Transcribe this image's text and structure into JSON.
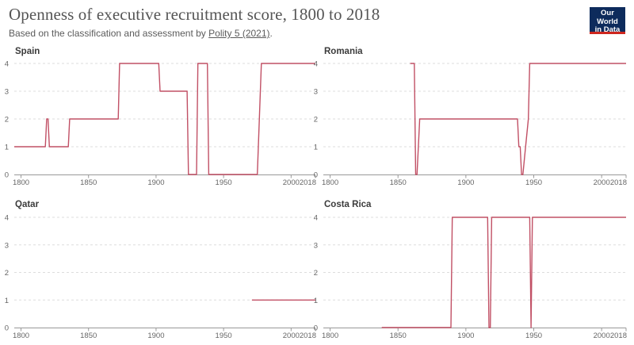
{
  "header": {
    "title": "Openness of executive recruitment score, 1800 to 2018",
    "subtitle_prefix": "Based on the classification and assessment by ",
    "subtitle_link": "Polity 5 (2021)",
    "subtitle_suffix": ".",
    "logo_line1": "Our World",
    "logo_line2": "in Data",
    "logo_bg": "#0d2b5c",
    "logo_accent": "#ce261e"
  },
  "chart_data": [
    {
      "type": "line",
      "title": "Spain",
      "color": "#c15065",
      "xlim": [
        1795,
        2018
      ],
      "ylim": [
        0,
        4
      ],
      "xticks": [
        1800,
        1850,
        1900,
        1950,
        2000,
        2018
      ],
      "yticks": [
        0,
        1,
        2,
        3,
        4
      ],
      "x": [
        1795,
        1818,
        1819,
        1820,
        1821,
        1835,
        1836,
        1872,
        1873,
        1902,
        1903,
        1923,
        1924,
        1926,
        1930,
        1931,
        1934,
        1938,
        1939,
        1975,
        1978,
        2018
      ],
      "y": [
        1,
        1,
        2,
        2,
        1,
        1,
        2,
        2,
        4,
        4,
        3,
        3,
        0,
        0,
        0,
        4,
        4,
        4,
        0,
        0,
        4,
        4
      ]
    },
    {
      "type": "line",
      "title": "Romania",
      "color": "#c15065",
      "xlim": [
        1795,
        2018
      ],
      "ylim": [
        0,
        4
      ],
      "xticks": [
        1800,
        1850,
        1900,
        1950,
        2000,
        2018
      ],
      "yticks": [
        0,
        1,
        2,
        3,
        4
      ],
      "x": [
        1859,
        1861,
        1862,
        1863,
        1864,
        1866,
        1938,
        1939,
        1940,
        1941,
        1942,
        1944,
        1946,
        1947,
        2018
      ],
      "y": [
        4,
        4,
        4,
        0,
        0,
        2,
        2,
        1,
        1,
        0,
        0,
        1,
        2,
        4,
        4
      ]
    },
    {
      "type": "line",
      "title": "Qatar",
      "color": "#c15065",
      "xlim": [
        1795,
        2018
      ],
      "ylim": [
        0,
        4
      ],
      "xticks": [
        1800,
        1850,
        1900,
        1950,
        2000,
        2018
      ],
      "yticks": [
        0,
        1,
        2,
        3,
        4
      ],
      "x": [
        1971,
        2018
      ],
      "y": [
        1,
        1
      ]
    },
    {
      "type": "line",
      "title": "Costa Rica",
      "color": "#c15065",
      "xlim": [
        1795,
        2018
      ],
      "ylim": [
        0,
        4
      ],
      "xticks": [
        1800,
        1850,
        1900,
        1950,
        2000,
        2018
      ],
      "yticks": [
        0,
        1,
        2,
        3,
        4
      ],
      "x": [
        1838,
        1889,
        1890,
        1916,
        1917,
        1918,
        1919,
        1947,
        1948,
        1949,
        2018
      ],
      "y": [
        0,
        0,
        4,
        4,
        0,
        0,
        4,
        4,
        0,
        4,
        4
      ]
    }
  ]
}
